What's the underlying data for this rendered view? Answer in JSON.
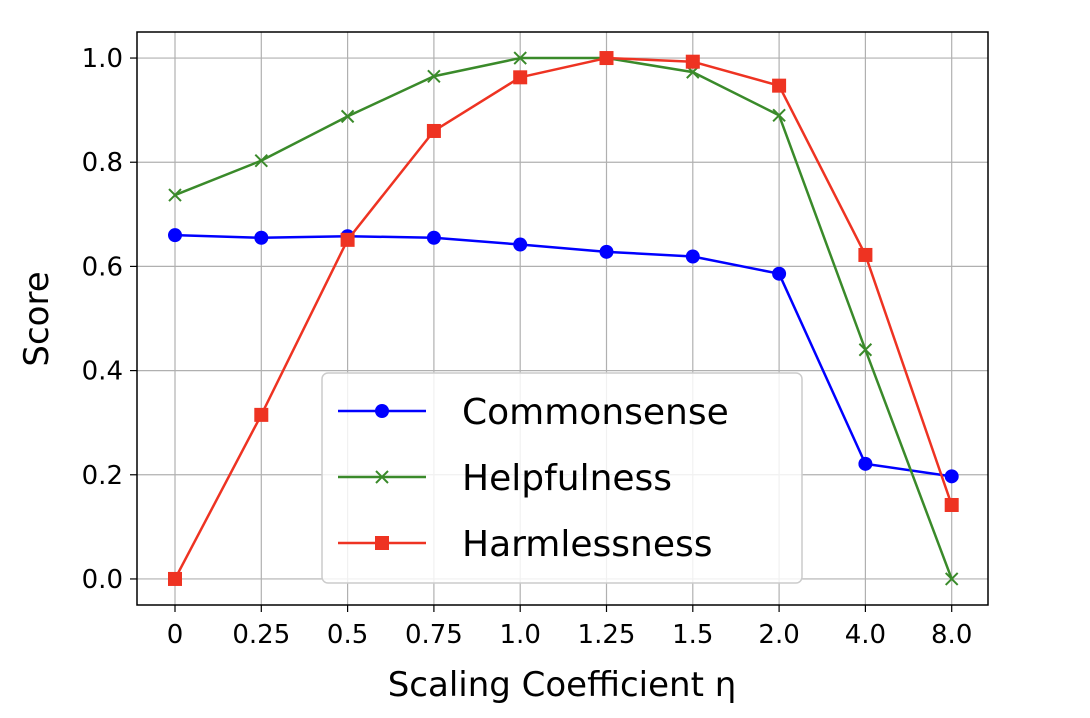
{
  "chart_data": {
    "type": "line",
    "categories": [
      "0",
      "0.25",
      "0.5",
      "0.75",
      "1.0",
      "1.25",
      "1.5",
      "2.0",
      "4.0",
      "8.0"
    ],
    "xlabel": "Scaling Coefficient η",
    "ylabel": "Score",
    "ylim": [
      -0.05,
      1.05
    ],
    "yticks": [
      "0.0",
      "0.2",
      "0.4",
      "0.6",
      "0.8",
      "1.0"
    ],
    "grid": true,
    "legend_position": "lower center",
    "series": [
      {
        "name": "Commonsense",
        "color": "#0000ff",
        "marker": "circle",
        "values": [
          0.66,
          0.655,
          0.658,
          0.655,
          0.642,
          0.628,
          0.619,
          0.586,
          0.221,
          0.197
        ]
      },
      {
        "name": "Helpfulness",
        "color": "#3a8a2a",
        "marker": "x",
        "values": [
          0.737,
          0.803,
          0.888,
          0.965,
          1.0,
          1.0,
          0.973,
          0.89,
          0.44,
          0.0
        ]
      },
      {
        "name": "Harmlessness",
        "color": "#ee3322",
        "marker": "square",
        "values": [
          0.0,
          0.315,
          0.651,
          0.86,
          0.963,
          1.0,
          0.993,
          0.947,
          0.622,
          0.142
        ]
      }
    ]
  }
}
